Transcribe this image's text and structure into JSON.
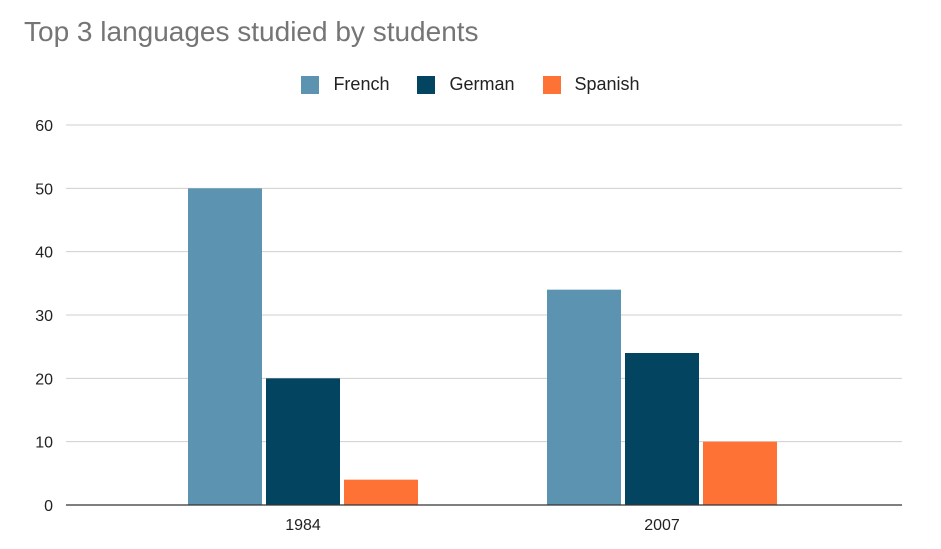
{
  "chart_data": {
    "type": "bar",
    "title": "Top 3 languages studied by students",
    "categories": [
      "1984",
      "2007"
    ],
    "series": [
      {
        "name": "French",
        "values": [
          50,
          34
        ],
        "color": "#5b93b1"
      },
      {
        "name": "German",
        "values": [
          20,
          24
        ],
        "color": "#034460"
      },
      {
        "name": "Spanish",
        "values": [
          4,
          10
        ],
        "color": "#ff7235"
      }
    ],
    "xlabel": "",
    "ylabel": "",
    "ylim": [
      0,
      60
    ],
    "y_ticks": [
      0,
      10,
      20,
      30,
      40,
      50,
      60
    ],
    "grid": true,
    "legend_position": "top-center"
  }
}
